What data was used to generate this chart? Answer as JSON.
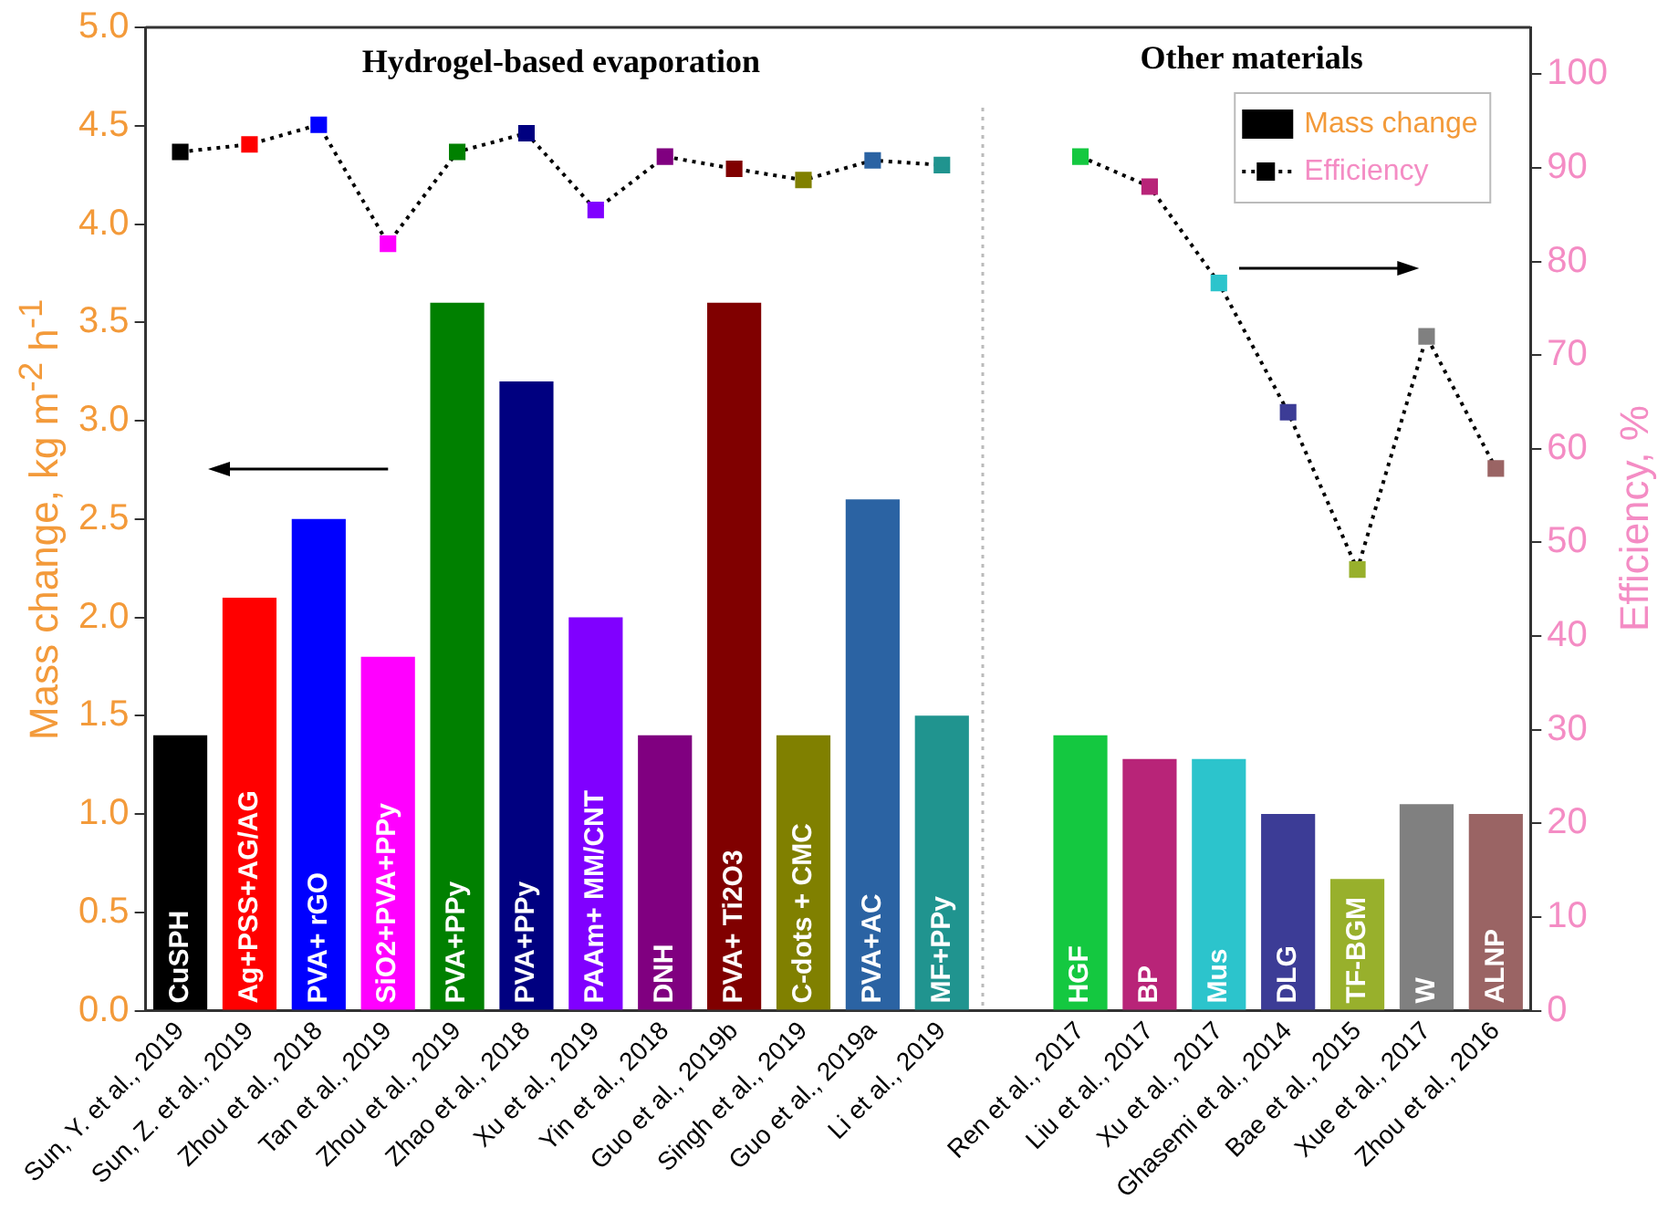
{
  "chart_data": {
    "type": "bar",
    "ylabel": "Mass change, kg m$^{-2}$ h$^{-1}$",
    "y2label": "Efficiency, %",
    "categories": [
      "Sun, Y. et al., 2019",
      "Sun, Z. et al., 2019",
      "Zhou et al., 2018",
      "Tan et al., 2019",
      "Zhou et al., 2019",
      "Zhao et al., 2018",
      "Xu et al., 2019",
      "Yin et al., 2018",
      "Guo et al., 2019b",
      "Singh et al., 2019",
      "Guo et al., 2019a",
      "Li et al., 2019",
      null,
      "Ren et al., 2017",
      "Liu et al., 2017",
      "Xu et al., 2017",
      "Ghasemi et al., 2014",
      "Bae et al., 2015",
      "Xue et al., 2017",
      "Zhou et al., 2016"
    ],
    "series": [
      {
        "name": "Mass change",
        "color": "#000000",
        "colors": [
          "#000000",
          "#ff0000",
          "#0000ff",
          "#ff00ff",
          "#008000",
          "#000080",
          "#8000ff",
          "#800080",
          "#800000",
          "#808000",
          "#2b63a3",
          "#20948f",
          null,
          "#14c840",
          "#b82478",
          "#2cc4cc",
          "#3c3c96",
          "#98b02c",
          "#808080",
          "#9a6464"
        ],
        "values": [
          1.4,
          2.1,
          2.5,
          1.8,
          3.6,
          3.2,
          2.0,
          1.4,
          3.6,
          1.4,
          2.6,
          1.5,
          null,
          1.4,
          1.28,
          1.28,
          1.0,
          0.67,
          1.05,
          1.0
        ]
      },
      {
        "name": "Efficiency",
        "type": "line",
        "axis": "y2",
        "marker": "square",
        "line_style": "dotted",
        "color": "#000000",
        "colors": [
          "#000000",
          "#ff0000",
          "#0000ff",
          "#ff00ff",
          "#008000",
          "#000080",
          "#8000ff",
          "#800080",
          "#800000",
          "#808000",
          "#2b63a3",
          "#20948f",
          null,
          "#14c840",
          "#b82478",
          "#2cc4cc",
          "#3c3c96",
          "#98b02c",
          "#808080",
          "#9a6464"
        ],
        "values": [
          91.7,
          92.5,
          94.6,
          81.9,
          91.7,
          93.7,
          85.5,
          91.2,
          89.9,
          88.7,
          90.8,
          90.3,
          null,
          91.2,
          88,
          77.7,
          63.9,
          47.1,
          72,
          57.9
        ]
      }
    ],
    "ylim": [
      0,
      5
    ],
    "yticks": [
      {
        "value": 0,
        "label": "0.0"
      },
      0.5,
      {
        "value": 1,
        "label": "1.0"
      },
      1.5,
      {
        "value": 2,
        "label": "2.0"
      },
      2.5,
      {
        "value": 3,
        "label": "3.0"
      },
      3.5,
      {
        "value": 4,
        "label": "4.0"
      },
      4.5,
      {
        "value": 5,
        "label": "5.0"
      }
    ],
    "y2lim": [
      0,
      105
    ],
    "y2ticks": [
      0,
      10,
      20,
      30,
      40,
      50,
      60,
      70,
      80,
      90,
      100
    ],
    "legend": "top right",
    "grid": false,
    "annotations": [
      "Hydrogel-based evaporation",
      "Other materials",
      "CuSPH",
      "Ag+PSS+AG/AG",
      "PVA+ rGO",
      "SiO2+PVA+PPy",
      "PVA+PPy",
      "PVA+PPy",
      "PAAm+ MM/CNT",
      "DNH",
      "PVA+ Ti2O3",
      "C-dots + CMC",
      "PVA+AC",
      "MF+PPy",
      "HGF",
      "BP",
      "Mus",
      "DLG",
      "TF-BGM",
      "W",
      "ALNP"
    ]
  }
}
